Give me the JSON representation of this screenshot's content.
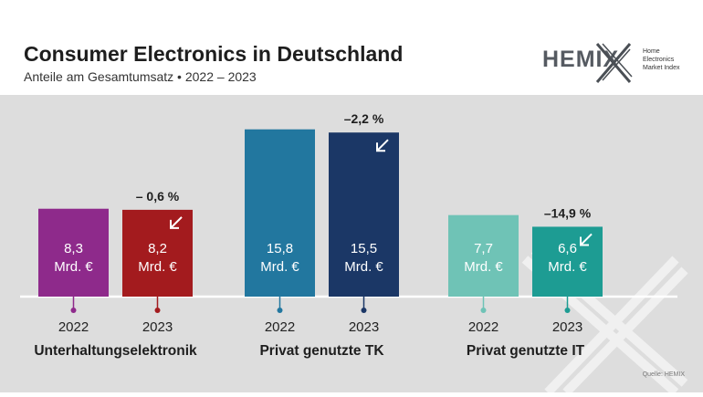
{
  "header": {
    "title": "Consumer Electronics in Deutschland",
    "subtitle": "Anteile am Gesamtumsatz • 2022 – 2023"
  },
  "logo": {
    "name": "HEMIX",
    "tagline": [
      "Home",
      "Electronics",
      "Market Index"
    ]
  },
  "source": "Quelle: HEMIX",
  "chart_data": {
    "type": "bar",
    "title": "Consumer Electronics in Deutschland",
    "subtitle": "Anteile am Gesamtumsatz • 2022 – 2023",
    "unit": "Mrd. €",
    "ylim": [
      0,
      16
    ],
    "groups": [
      {
        "name": "Unterhaltungselektronik",
        "change": "– 0,6 %",
        "bars": [
          {
            "year": "2022",
            "value": 8.3,
            "label": "8,3",
            "color": "#8e2a8b"
          },
          {
            "year": "2023",
            "value": 8.2,
            "label": "8,2",
            "color": "#a31b1e"
          }
        ]
      },
      {
        "name": "Privat genutzte TK",
        "change": "–2,2 %",
        "bars": [
          {
            "year": "2022",
            "value": 15.8,
            "label": "15,8",
            "color": "#22779f"
          },
          {
            "year": "2023",
            "value": 15.5,
            "label": "15,5",
            "color": "#1b3766"
          }
        ]
      },
      {
        "name": "Privat genutzte IT",
        "change": "–14,9 %",
        "bars": [
          {
            "year": "2022",
            "value": 7.7,
            "label": "7,7",
            "color": "#6fc3b6"
          },
          {
            "year": "2023",
            "value": 6.6,
            "label": "6,6",
            "color": "#1d9c93"
          }
        ]
      }
    ]
  }
}
